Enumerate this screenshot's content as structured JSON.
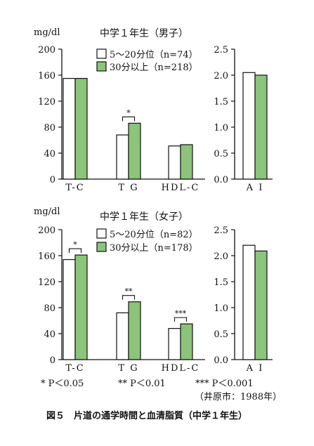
{
  "colors": {
    "white_bar": "#ffffff",
    "green_bar": "#8cc47a",
    "stroke": "#111111"
  },
  "chart_data": [
    {
      "type": "bar",
      "title": "中学１年生（男子）",
      "unit": "mg/dl",
      "categories": [
        "T-C",
        "T G",
        "HDL-C"
      ],
      "ylim": [
        0,
        200
      ],
      "yticks": [
        "0",
        "40",
        "80",
        "120",
        "160",
        "200"
      ],
      "series": [
        {
          "name": "5～20分位（n=74）",
          "values": [
            155,
            68,
            51
          ]
        },
        {
          "name": "30分以上（n=218）",
          "values": [
            155,
            86,
            53
          ]
        }
      ],
      "significance": [
        {
          "category": 1,
          "label": "*"
        }
      ],
      "ai": {
        "category": "A I",
        "ylim": [
          0,
          2.5
        ],
        "yticks": [
          "0.0",
          "0.5",
          "1.0",
          "1.5",
          "2.0",
          "2.5"
        ],
        "values": [
          2.05,
          2.0
        ]
      }
    },
    {
      "type": "bar",
      "title": "中学１年生（女子）",
      "unit": "mg/dl",
      "categories": [
        "T-C",
        "T G",
        "HDL-C"
      ],
      "ylim": [
        0,
        200
      ],
      "yticks": [
        "0",
        "40",
        "80",
        "120",
        "160",
        "200"
      ],
      "series": [
        {
          "name": "5～20分位（n=82）",
          "values": [
            154,
            72,
            48
          ]
        },
        {
          "name": "30分以上（n=178）",
          "values": [
            161,
            89,
            55
          ]
        }
      ],
      "significance": [
        {
          "category": 0,
          "label": "*"
        },
        {
          "category": 1,
          "label": "**"
        },
        {
          "category": 2,
          "label": "***"
        }
      ],
      "ai": {
        "category": "A I",
        "ylim": [
          0,
          2.5
        ],
        "yticks": [
          "0.0",
          "0.5",
          "1.0",
          "1.5",
          "2.0",
          "2.5"
        ],
        "values": [
          2.2,
          2.09
        ]
      }
    }
  ],
  "footnotes": {
    "p1": "* P＜0.05",
    "p2": "** P＜0.01",
    "p3": "*** P＜0.001",
    "source": "（井原市：1988年）"
  },
  "caption": "図５　片道の通学時間と血清脂質（中学１年生）"
}
